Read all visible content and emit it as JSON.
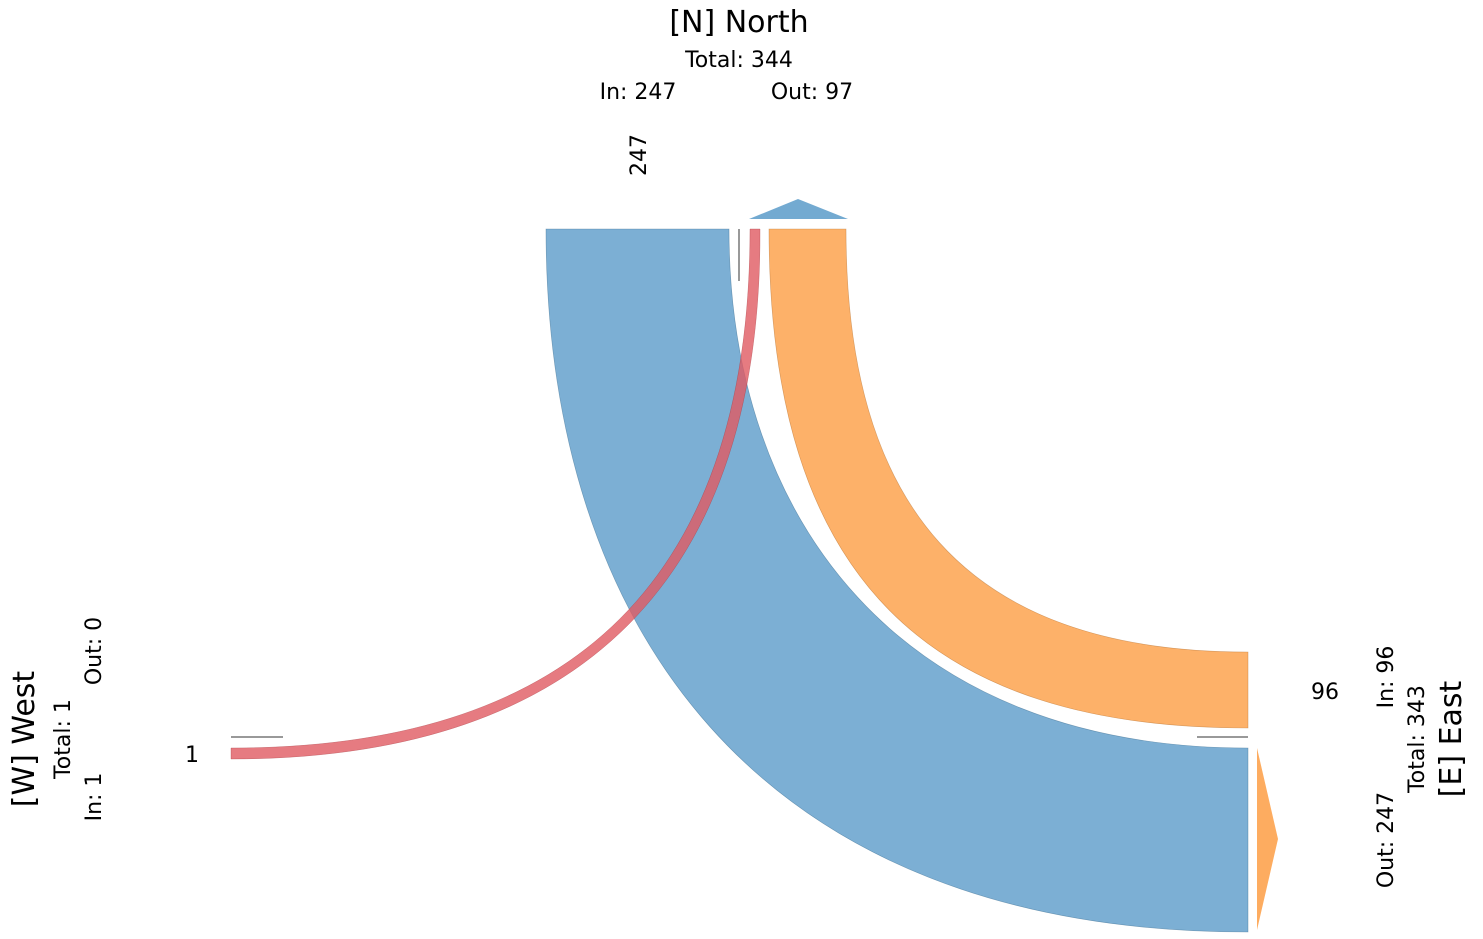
{
  "chart_data": {
    "type": "sankey-intersection",
    "nodes": {
      "north": {
        "label": "[N] North",
        "total": "Total: 344",
        "in": "In: 247",
        "out": "Out: 97",
        "flow_label": "247"
      },
      "west": {
        "label": "[W] West",
        "total": "Total: 1",
        "in": "In: 1",
        "out": "Out: 0",
        "flow_label": "1"
      },
      "east": {
        "label": "[E] East",
        "total": "Total: 343",
        "in": "In: 96",
        "out": "Out: 247",
        "flow_label": "96"
      }
    },
    "flows": [
      {
        "from": "North",
        "to": "East",
        "value": 247,
        "color": "#5b9bc9"
      },
      {
        "from": "East",
        "to": "North",
        "value": 96,
        "color": "#fda34f"
      },
      {
        "from": "West",
        "to": "North",
        "value": 1,
        "color": "#e05a62"
      }
    ],
    "colors": {
      "blue": "#5b9bc9",
      "orange": "#fda34f",
      "red": "#e05a62",
      "separator": "#999999"
    }
  }
}
